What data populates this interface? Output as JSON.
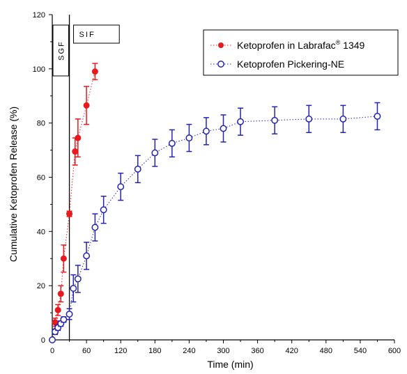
{
  "chart_data": {
    "type": "scatter",
    "xlabel": "Time (min)",
    "ylabel": "Cumulative Ketoprofen Release (%)",
    "xlim": [
      0,
      600
    ],
    "ylim": [
      0,
      120
    ],
    "x_ticks": [
      0,
      60,
      120,
      180,
      240,
      300,
      360,
      420,
      480,
      540,
      600
    ],
    "y_ticks": [
      0,
      20,
      40,
      60,
      80,
      100,
      120
    ],
    "grid": false,
    "legend_position": "top-right",
    "phases": [
      {
        "label": "SGF",
        "x_start": 0,
        "x_end": 30
      },
      {
        "label": "SIF",
        "x_start": 30,
        "x_end": 120
      }
    ],
    "phase_boundary_x": 30,
    "series": [
      {
        "name": "Ketoprofen in Labrafac",
        "name_sup": "®",
        "name_suffix": " 1349",
        "color": "#e8191f",
        "marker": "filled-circle",
        "x": [
          0,
          5,
          10,
          15,
          20,
          30,
          40,
          45,
          60,
          75
        ],
        "y": [
          0,
          6.5,
          11,
          17,
          30,
          46.5,
          69.5,
          74.5,
          86.5,
          99
        ],
        "err": [
          0,
          1.5,
          2,
          3,
          5,
          1,
          5,
          7,
          7,
          3
        ]
      },
      {
        "name": "Ketoprofen Pickering-NE",
        "color": "#2424b4",
        "marker": "open-circle",
        "x": [
          0,
          5,
          10,
          15,
          20,
          30,
          37,
          45,
          60,
          75,
          90,
          120,
          150,
          180,
          210,
          240,
          270,
          300,
          330,
          390,
          450,
          510,
          570
        ],
        "y": [
          0,
          3,
          4.5,
          6,
          7.5,
          9.5,
          19,
          22.5,
          31,
          41.5,
          48,
          56.5,
          63,
          69,
          72.5,
          74.5,
          77,
          78,
          80.5,
          81,
          81.5,
          81.5,
          82.5
        ],
        "err": [
          0,
          1,
          1,
          1,
          1,
          2,
          5,
          5,
          5,
          5,
          5,
          5,
          5,
          5,
          5,
          5,
          5,
          5,
          5,
          5,
          5,
          5,
          5
        ]
      }
    ]
  }
}
